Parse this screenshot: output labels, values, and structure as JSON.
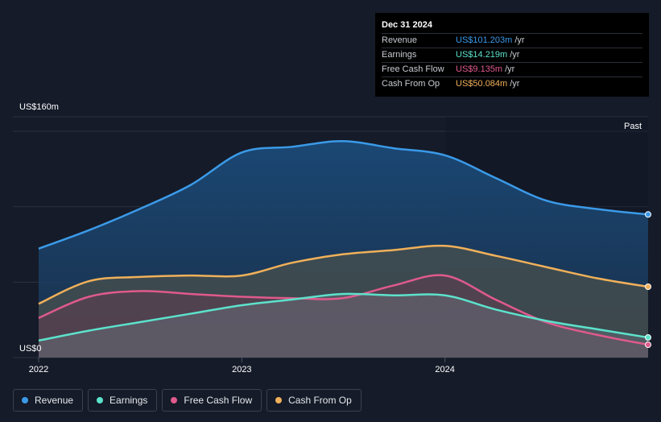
{
  "tooltip": {
    "date": "Dec 31 2024",
    "rows": [
      {
        "label": "Revenue",
        "value": "US$101.203m",
        "unit": "/yr",
        "color": "#3b9ae8"
      },
      {
        "label": "Earnings",
        "value": "US$14.219m",
        "unit": "/yr",
        "color": "#5de2cc"
      },
      {
        "label": "Free Cash Flow",
        "value": "US$9.135m",
        "unit": "/yr",
        "color": "#e05a8c"
      },
      {
        "label": "Cash From Op",
        "value": "US$50.084m",
        "unit": "/yr",
        "color": "#f0b05a"
      }
    ]
  },
  "chart_data": {
    "type": "area",
    "y_top_label": "US$160m",
    "y_bottom_label": "US$0",
    "past_label": "Past",
    "ylim": [
      0,
      160
    ],
    "x_ticks": [
      "2022",
      "2023",
      "2024"
    ],
    "x_range": [
      "2022-01-01",
      "2024-12-31"
    ],
    "series": [
      {
        "name": "Revenue",
        "color": "#3b9ae8",
        "x": [
          "2022-01-01",
          "2022-04-01",
          "2022-07-01",
          "2022-10-01",
          "2023-01-01",
          "2023-04-01",
          "2023-07-01",
          "2023-10-01",
          "2024-01-01",
          "2024-04-01",
          "2024-07-01",
          "2024-10-01",
          "2024-12-31"
        ],
        "values": [
          77,
          90,
          105,
          122,
          145,
          149,
          153,
          148,
          143,
          127,
          111,
          105,
          101.2
        ]
      },
      {
        "name": "Cash From Op",
        "color": "#f0b05a",
        "x": [
          "2022-01-01",
          "2022-04-01",
          "2022-07-01",
          "2022-10-01",
          "2023-01-01",
          "2023-04-01",
          "2023-07-01",
          "2023-10-01",
          "2024-01-01",
          "2024-04-01",
          "2024-07-01",
          "2024-10-01",
          "2024-12-31"
        ],
        "values": [
          38,
          54,
          57,
          58,
          58,
          67,
          73,
          76,
          79,
          72,
          64,
          56,
          50.1
        ]
      },
      {
        "name": "Free Cash Flow",
        "color": "#e05a8c",
        "x": [
          "2022-01-01",
          "2022-04-01",
          "2022-07-01",
          "2022-10-01",
          "2023-01-01",
          "2023-04-01",
          "2023-07-01",
          "2023-10-01",
          "2024-01-01",
          "2024-04-01",
          "2024-07-01",
          "2024-10-01",
          "2024-12-31"
        ],
        "values": [
          28,
          43,
          47,
          45,
          43,
          42,
          42,
          51,
          58,
          41,
          25,
          16,
          9.1
        ]
      },
      {
        "name": "Earnings",
        "color": "#5de2cc",
        "x": [
          "2022-01-01",
          "2022-04-01",
          "2022-07-01",
          "2022-10-01",
          "2023-01-01",
          "2023-04-01",
          "2023-07-01",
          "2023-10-01",
          "2024-01-01",
          "2024-04-01",
          "2024-07-01",
          "2024-10-01",
          "2024-12-31"
        ],
        "values": [
          12,
          19,
          25,
          31,
          37,
          41,
          45,
          44,
          44,
          34,
          26,
          20,
          14.2
        ]
      }
    ]
  },
  "legend": {
    "items": [
      {
        "label": "Revenue",
        "color": "#3b9ae8"
      },
      {
        "label": "Earnings",
        "color": "#5de2cc"
      },
      {
        "label": "Free Cash Flow",
        "color": "#e05a8c"
      },
      {
        "label": "Cash From Op",
        "color": "#f0b05a"
      }
    ]
  }
}
